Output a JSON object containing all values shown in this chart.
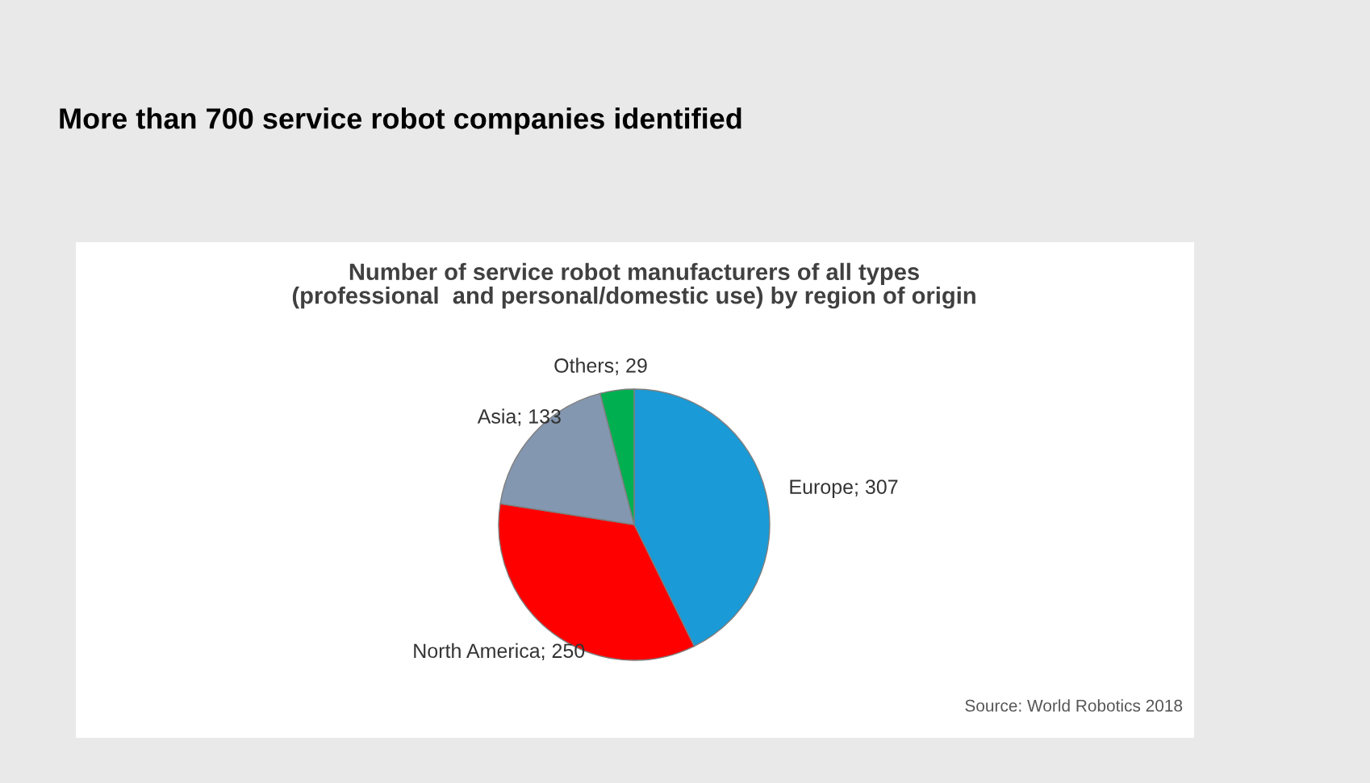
{
  "chart_data": {
    "type": "pie",
    "title": "More than 700 service robot companies identified",
    "subtitle": "Number of service robot manufacturers of all types\n(professional  and personal/domestic use) by region of origin",
    "categories": [
      "Europe",
      "North America",
      "Asia",
      "Others"
    ],
    "values": [
      307,
      250,
      133,
      29
    ],
    "colors": [
      "#1a9ad6",
      "#ff0000",
      "#8497b0",
      "#00b050"
    ],
    "value_labels": [
      "; 307",
      "; 250",
      "; 133",
      "; 29"
    ],
    "legend": false,
    "annotations": [
      "Source: World Robotics 2018"
    ]
  }
}
